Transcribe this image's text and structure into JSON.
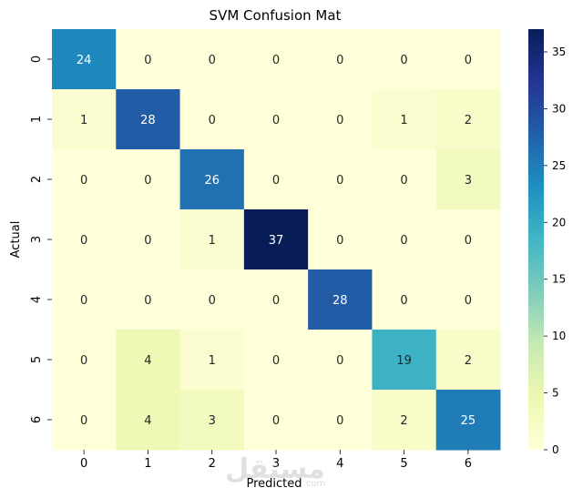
{
  "chart_data": {
    "type": "heatmap",
    "title": "SVM Confusion Mat",
    "xlabel": "Predicted",
    "ylabel": "Actual",
    "x_categories": [
      "0",
      "1",
      "2",
      "3",
      "4",
      "5",
      "6"
    ],
    "y_categories": [
      "0",
      "1",
      "2",
      "3",
      "4",
      "5",
      "6"
    ],
    "values": [
      [
        24,
        0,
        0,
        0,
        0,
        0,
        0
      ],
      [
        1,
        28,
        0,
        0,
        0,
        1,
        2
      ],
      [
        0,
        0,
        26,
        0,
        0,
        0,
        3
      ],
      [
        0,
        0,
        1,
        37,
        0,
        0,
        0
      ],
      [
        0,
        0,
        0,
        0,
        28,
        0,
        0
      ],
      [
        0,
        4,
        1,
        0,
        0,
        19,
        2
      ],
      [
        0,
        4,
        3,
        0,
        0,
        2,
        25
      ]
    ],
    "colormap": "YlGnBu",
    "vmin": 0,
    "vmax": 37,
    "colorbar_ticks": [
      0,
      5,
      10,
      15,
      20,
      25,
      30,
      35
    ]
  },
  "watermark": {
    "text": "مستقل",
    "subtext": ".com"
  }
}
